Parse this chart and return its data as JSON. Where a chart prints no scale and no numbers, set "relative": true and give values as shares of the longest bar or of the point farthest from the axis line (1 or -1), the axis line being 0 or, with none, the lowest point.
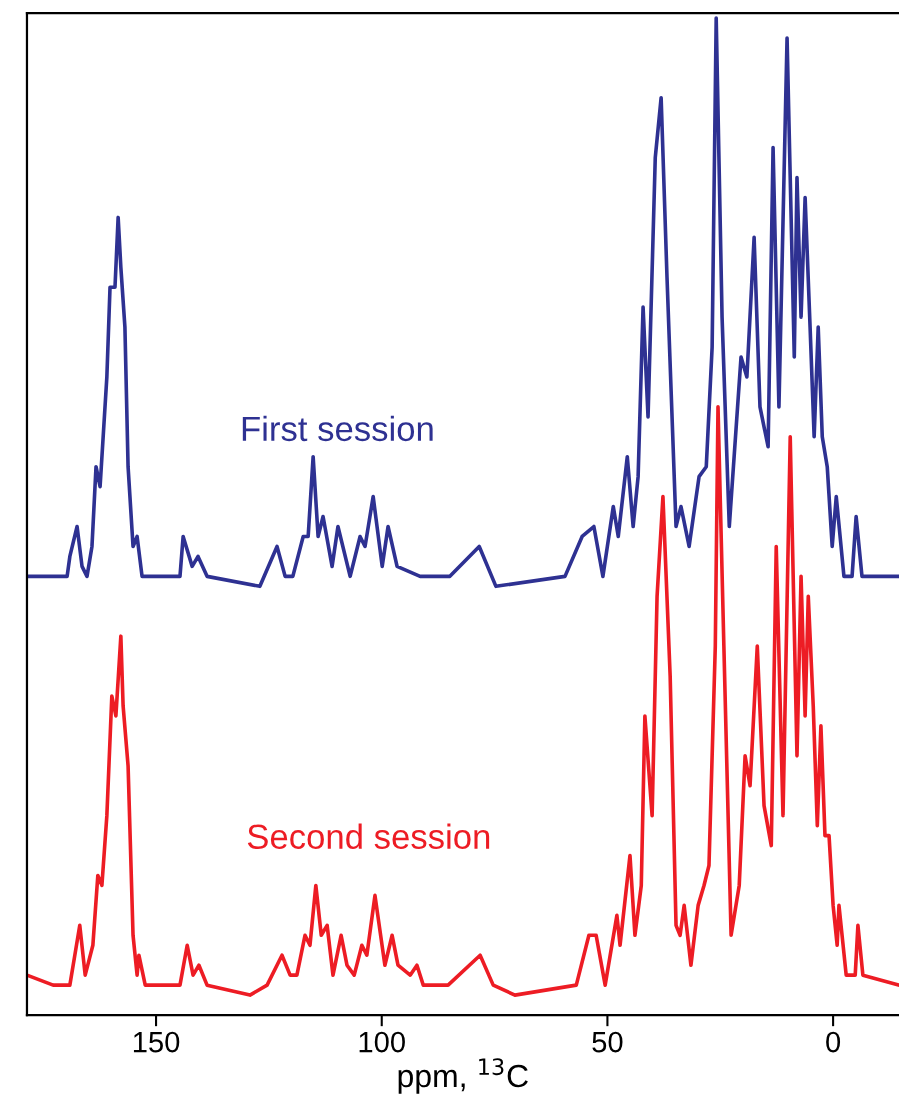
{
  "chart_data": {
    "type": "line",
    "relative": true,
    "xlabel": "ppm, $^{13}$C",
    "xlim": [
      178.6,
      -14.6
    ],
    "xticks": [
      150,
      100,
      50,
      0
    ],
    "grid": false,
    "legend": false,
    "marker": "none",
    "line_style": "solid",
    "series": [
      {
        "name": "First session",
        "color": "#2e3192",
        "x": [
          178.6,
          169.7,
          169.1,
          167.5,
          166.4,
          165.3,
          164.2,
          163.3,
          162.4,
          160.9,
          160.2,
          159.1,
          158.4,
          157.8,
          156.9,
          156.2,
          155.1,
          154.2,
          153.1,
          144.7,
          144.0,
          142.0,
          140.7,
          138.7,
          127.0,
          123.2,
          121.4,
          119.7,
          117.4,
          116.3,
          115.2,
          114.1,
          113.0,
          111.0,
          109.7,
          107.0,
          104.8,
          103.7,
          101.9,
          99.9,
          98.6,
          96.6,
          91.5,
          84.9,
          78.4,
          74.7,
          59.4,
          55.6,
          53.0,
          51.0,
          48.7,
          47.6,
          45.6,
          44.3,
          43.2,
          42.1,
          41.0,
          39.4,
          38.1,
          36.8,
          34.8,
          33.7,
          31.9,
          29.7,
          28.1,
          26.8,
          25.9,
          24.6,
          23.0,
          20.4,
          19.1,
          17.5,
          16.2,
          14.4,
          13.3,
          12.0,
          10.2,
          8.6,
          8.0,
          7.1,
          6.2,
          5.1,
          4.2,
          3.3,
          2.4,
          1.3,
          0.2,
          -0.7,
          -2.4,
          -4.2,
          -5.1,
          -6.4,
          -14.6
        ],
        "values": [
          0.44,
          0.44,
          0.46,
          0.49,
          0.45,
          0.44,
          0.47,
          0.55,
          0.53,
          0.64,
          0.73,
          0.73,
          0.8,
          0.75,
          0.69,
          0.55,
          0.47,
          0.48,
          0.44,
          0.44,
          0.48,
          0.45,
          0.46,
          0.44,
          0.43,
          0.47,
          0.44,
          0.44,
          0.48,
          0.48,
          0.56,
          0.48,
          0.5,
          0.45,
          0.49,
          0.44,
          0.48,
          0.47,
          0.52,
          0.45,
          0.49,
          0.45,
          0.44,
          0.44,
          0.47,
          0.43,
          0.44,
          0.48,
          0.49,
          0.44,
          0.51,
          0.48,
          0.56,
          0.49,
          0.54,
          0.71,
          0.6,
          0.86,
          0.92,
          0.74,
          0.49,
          0.51,
          0.47,
          0.54,
          0.55,
          0.67,
          1.0,
          0.7,
          0.49,
          0.66,
          0.64,
          0.78,
          0.61,
          0.57,
          0.87,
          0.61,
          0.98,
          0.66,
          0.84,
          0.7,
          0.82,
          0.69,
          0.58,
          0.69,
          0.58,
          0.55,
          0.47,
          0.52,
          0.44,
          0.44,
          0.5,
          0.44,
          0.44
        ]
      },
      {
        "name": "Second session",
        "color": "#ed1c24",
        "x": [
          178.6,
          172.8,
          169.1,
          168.0,
          166.9,
          165.7,
          164.0,
          162.9,
          162.0,
          160.9,
          159.8,
          158.9,
          157.8,
          157.3,
          156.2,
          155.1,
          154.2,
          153.8,
          152.4,
          144.7,
          143.1,
          141.8,
          140.5,
          138.7,
          129.2,
          125.4,
          122.1,
          120.3,
          118.8,
          117.0,
          115.9,
          114.6,
          113.4,
          112.1,
          110.8,
          109.0,
          107.7,
          106.1,
          104.4,
          103.3,
          101.5,
          99.3,
          97.7,
          96.4,
          93.7,
          92.2,
          90.8,
          85.3,
          78.2,
          75.3,
          70.5,
          56.9,
          54.1,
          52.5,
          50.5,
          47.9,
          47.2,
          45.0,
          43.9,
          42.5,
          41.7,
          40.1,
          39.0,
          37.7,
          36.1,
          34.8,
          33.9,
          33.0,
          31.5,
          29.9,
          28.6,
          27.5,
          26.1,
          25.5,
          24.2,
          22.6,
          20.8,
          19.5,
          18.4,
          16.8,
          15.3,
          13.7,
          12.6,
          11.1,
          9.5,
          8.0,
          7.1,
          6.2,
          5.5,
          4.4,
          3.5,
          2.7,
          1.8,
          0.9,
          0.0,
          -0.9,
          -1.3,
          -2.9,
          -4.9,
          -5.5,
          -6.6,
          -14.6
        ],
        "values": [
          0.04,
          0.03,
          0.03,
          0.06,
          0.09,
          0.04,
          0.07,
          0.14,
          0.13,
          0.2,
          0.32,
          0.3,
          0.38,
          0.31,
          0.25,
          0.08,
          0.04,
          0.06,
          0.03,
          0.03,
          0.07,
          0.04,
          0.05,
          0.03,
          0.02,
          0.03,
          0.06,
          0.04,
          0.04,
          0.08,
          0.07,
          0.13,
          0.08,
          0.09,
          0.04,
          0.08,
          0.05,
          0.04,
          0.07,
          0.06,
          0.12,
          0.05,
          0.08,
          0.05,
          0.04,
          0.05,
          0.03,
          0.03,
          0.06,
          0.03,
          0.02,
          0.03,
          0.08,
          0.08,
          0.03,
          0.1,
          0.07,
          0.16,
          0.08,
          0.13,
          0.3,
          0.2,
          0.42,
          0.52,
          0.34,
          0.09,
          0.08,
          0.11,
          0.05,
          0.11,
          0.13,
          0.15,
          0.37,
          0.61,
          0.37,
          0.08,
          0.13,
          0.26,
          0.23,
          0.37,
          0.21,
          0.17,
          0.47,
          0.2,
          0.58,
          0.26,
          0.44,
          0.3,
          0.42,
          0.31,
          0.19,
          0.29,
          0.18,
          0.18,
          0.11,
          0.07,
          0.11,
          0.04,
          0.04,
          0.09,
          0.04,
          0.03
        ]
      }
    ]
  }
}
